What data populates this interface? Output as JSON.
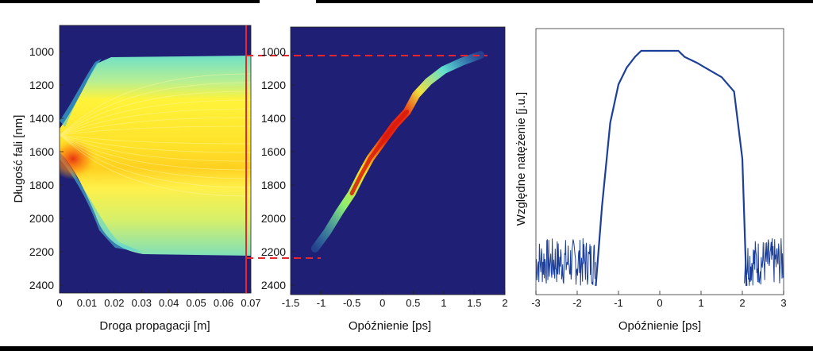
{
  "chart_data": [
    {
      "type": "heatmap",
      "title": "",
      "xlabel": "Droga propagacji [m]",
      "ylabel": "Długość fali [nm]",
      "xlim": [
        0,
        0.07
      ],
      "ylim": [
        2450,
        850
      ],
      "x_ticks": [
        "0",
        "0.01",
        "0.02",
        "0.03",
        "0.04",
        "0.05",
        "0.06",
        "0.07"
      ],
      "y_ticks": [
        "1000",
        "1200",
        "1400",
        "1600",
        "1800",
        "2000",
        "2200",
        "2400"
      ],
      "description_values": {
        "input_center_wavelength_nm": 1500,
        "final_band_nm": [
          1020,
          2240
        ],
        "marker_position_m": 0.069
      },
      "colors": {
        "background": "#1f1f75",
        "marker": "#e8262b",
        "high": "#ff2200",
        "mid": "#ffff30",
        "low": "#35cfe6"
      }
    },
    {
      "type": "heatmap",
      "title": "",
      "xlabel": "Opóźnienie [ps]",
      "ylabel": "",
      "xlim": [
        -1.5,
        2
      ],
      "ylim": [
        2450,
        850
      ],
      "x_ticks": [
        "-1.5",
        "-1",
        "-0.5",
        "0",
        "0.5",
        "1",
        "1.5",
        "2"
      ],
      "y_ticks": [
        "1000",
        "1200",
        "1400",
        "1600",
        "1800",
        "2000",
        "2200",
        "2400"
      ],
      "trace": {
        "delay_ps": [
          -1.1,
          -0.9,
          -0.7,
          -0.5,
          -0.35,
          -0.2,
          0.0,
          0.2,
          0.4,
          0.55,
          0.75,
          1.0,
          1.3,
          1.6
        ],
        "wavelength_nm": [
          2180,
          2080,
          1960,
          1850,
          1740,
          1640,
          1540,
          1440,
          1360,
          1260,
          1180,
          1110,
          1060,
          1020
        ]
      },
      "dashed_lines_nm": [
        1020,
        2240
      ],
      "colors": {
        "background": "#1f1f75",
        "dashed": "#e8262b"
      }
    },
    {
      "type": "line",
      "title": "",
      "xlabel": "Opóźnienie [ps]",
      "ylabel": "Względne natężenie [j.u.]",
      "xlim": [
        -3,
        3
      ],
      "ylim": [
        0,
        1
      ],
      "x_ticks": [
        "-3",
        "-2",
        "-1",
        "0",
        "1",
        "2",
        "3"
      ],
      "series": [
        {
          "x": [
            -1.55,
            -1.4,
            -1.2,
            -1.0,
            -0.8,
            -0.6,
            -0.45,
            0.45,
            0.6,
            0.9,
            1.2,
            1.5,
            1.8,
            2.0,
            2.1
          ],
          "y": [
            0.02,
            0.35,
            0.7,
            0.86,
            0.93,
            0.975,
            1.0,
            1.0,
            0.975,
            0.95,
            0.92,
            0.89,
            0.83,
            0.55,
            0.02
          ]
        }
      ],
      "noise_regions_ps": [
        [
          -3,
          -1.55
        ],
        [
          2.05,
          3
        ]
      ],
      "colors": {
        "line": "#1c3f9a"
      }
    }
  ]
}
